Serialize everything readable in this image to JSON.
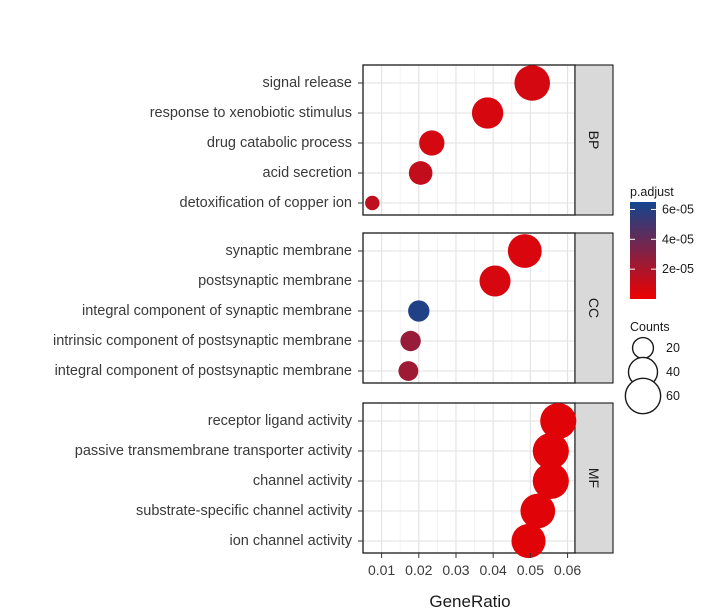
{
  "chart_data": {
    "type": "scatter",
    "title": "",
    "xlabel": "GeneRatio",
    "ylabel": "",
    "xlim": [
      0.005,
      0.062
    ],
    "x_ticks": [
      "0.01",
      "0.02",
      "0.03",
      "0.04",
      "0.05",
      "0.06"
    ],
    "grid": true,
    "legend_position": "right",
    "color_scale": {
      "title": "p.adjust",
      "low_color": "#ee0000",
      "high_color": "#12458e",
      "min": 0,
      "max": 6.5e-05,
      "ticks": [
        {
          "label": "6e-05",
          "value": 6e-05
        },
        {
          "label": "4e-05",
          "value": 4e-05
        },
        {
          "label": "2e-05",
          "value": 2e-05
        }
      ]
    },
    "size_scale": {
      "title": "Counts",
      "entries": [
        {
          "label": "20",
          "value": 20
        },
        {
          "label": "40",
          "value": 40
        },
        {
          "label": "60",
          "value": 60
        }
      ]
    },
    "facets": [
      {
        "name": "BP",
        "terms": [
          {
            "label": "signal release",
            "x": 0.0505,
            "count": 61,
            "padj": 8e-06
          },
          {
            "label": "response to xenobiotic stimulus",
            "x": 0.0385,
            "count": 47,
            "padj": 7e-06
          },
          {
            "label": "drug catabolic process",
            "x": 0.0235,
            "count": 30,
            "padj": 8e-06
          },
          {
            "label": "acid secretion",
            "x": 0.0205,
            "count": 26,
            "padj": 1.3e-05
          },
          {
            "label": "detoxification of copper ion",
            "x": 0.0075,
            "count": 9,
            "padj": 1.4e-05
          }
        ]
      },
      {
        "name": "CC",
        "terms": [
          {
            "label": "synaptic membrane",
            "x": 0.0485,
            "count": 55,
            "padj": 6e-06
          },
          {
            "label": "postsynaptic membrane",
            "x": 0.0405,
            "count": 46,
            "padj": 7e-06
          },
          {
            "label": "integral component of synaptic membrane",
            "x": 0.02,
            "count": 21,
            "padj": 6.1e-05
          },
          {
            "label": "intrinsic component of postsynaptic membrane",
            "x": 0.0178,
            "count": 19,
            "padj": 2.6e-05
          },
          {
            "label": "integral component of postsynaptic membrane",
            "x": 0.0172,
            "count": 18,
            "padj": 2.4e-05
          }
        ]
      },
      {
        "name": "MF",
        "terms": [
          {
            "label": "receptor ligand activity",
            "x": 0.0575,
            "count": 63,
            "padj": 4e-06
          },
          {
            "label": "passive transmembrane transporter activity",
            "x": 0.0555,
            "count": 63,
            "padj": 4e-06
          },
          {
            "label": "channel activity",
            "x": 0.0555,
            "count": 63,
            "padj": 4e-06
          },
          {
            "label": "substrate-specific channel activity",
            "x": 0.052,
            "count": 58,
            "padj": 4e-06
          },
          {
            "label": "ion channel activity",
            "x": 0.0495,
            "count": 56,
            "padj": 4e-06
          }
        ]
      }
    ]
  }
}
